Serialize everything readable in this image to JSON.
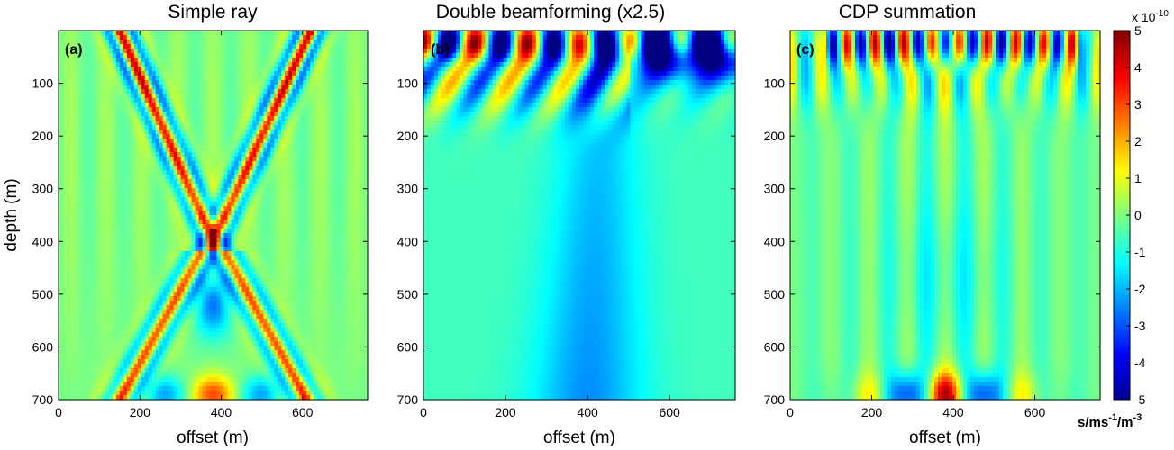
{
  "chart_data": [
    {
      "type": "heatmap",
      "panel_label": "(a)",
      "title": "Simple ray",
      "xlabel": "offset (m)",
      "ylabel": "depth (m)",
      "xlim": [
        0,
        760
      ],
      "ylim": [
        0,
        700
      ],
      "x_ticks": [
        "0",
        "200",
        "400",
        "600"
      ],
      "y_ticks": [
        "100",
        "200",
        "300",
        "400",
        "500",
        "600",
        "700"
      ],
      "pattern": "V-shaped crossing wavefronts from sources near x=150 m and x=620 m at the surface, meeting around x=380 m, with strong alternating red/blue bands"
    },
    {
      "type": "heatmap",
      "panel_label": "(b)",
      "title": "Double beamforming (x2.5)",
      "xlabel": "offset (m)",
      "ylabel": "",
      "xlim": [
        0,
        760
      ],
      "ylim": [
        0,
        700
      ],
      "x_ticks": [
        "0",
        "200",
        "400",
        "600"
      ],
      "y_ticks": [
        "100",
        "200",
        "300",
        "400",
        "500",
        "600",
        "700"
      ],
      "pattern": "strong oscillations near the surface, deep blue negative region near x=500-740 m shallow, diffuse negative cone toward x=400 m at depth"
    },
    {
      "type": "heatmap",
      "panel_label": "(c)",
      "title": "CDP summation",
      "xlabel": "offset (m)",
      "ylabel": "",
      "xlim": [
        0,
        760
      ],
      "ylim": [
        0,
        700
      ],
      "x_ticks": [
        "0",
        "200",
        "400",
        "600"
      ],
      "y_ticks": [
        "100",
        "200",
        "300",
        "400",
        "500",
        "600",
        "700"
      ],
      "pattern": "high-frequency oscillations in top ~100 m, faint streaks at depth, strong alternating blobs near x=270-500 m at 650-700 m depth"
    }
  ],
  "colorbar": {
    "exponent_label": "x 10",
    "exponent": "-10",
    "min": -5,
    "max": 5,
    "ticks": [
      "5",
      "4",
      "3",
      "2",
      "1",
      "0",
      "-1",
      "-2",
      "-3",
      "-4",
      "-5"
    ],
    "unit_main": "s/ms",
    "unit_sup1": "-1",
    "unit_mid": "/m",
    "unit_sup2": "-3",
    "colormap": "jet"
  }
}
